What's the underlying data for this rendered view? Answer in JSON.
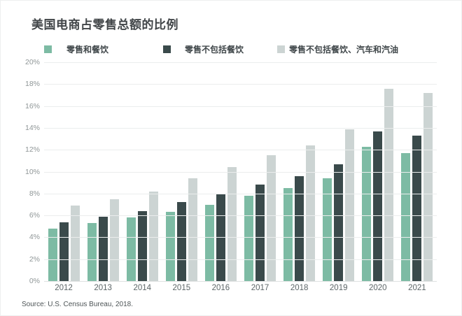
{
  "title": "美国电商占零售总额的比例",
  "source": "Source: U.S. Census Bureau, 2018.",
  "colors": {
    "series_green": "#7dbba4",
    "series_dark": "#3a4a4b",
    "series_light": "#ccd4d3",
    "gridline": "#ebeded",
    "title_text": "#414548",
    "axis_text": "#8f9697"
  },
  "legend": [
    {
      "label": "零售和餐饮",
      "color": "#7dbba4"
    },
    {
      "label": "零售不包括餐饮",
      "color": "#3a4a4b"
    },
    {
      "label": "零售不包括餐饮、汽车和汽油",
      "color": "#ccd4d3"
    }
  ],
  "chart_data": {
    "type": "bar",
    "title": "美国电商占零售总额的比例",
    "categories": [
      "2012",
      "2013",
      "2014",
      "2015",
      "2016",
      "2017",
      "2018",
      "2019",
      "2020",
      "2021"
    ],
    "series": [
      {
        "name": "零售和餐饮",
        "color": "#7dbba4",
        "values": [
          4.8,
          5.3,
          5.8,
          6.3,
          7.0,
          7.8,
          8.5,
          9.4,
          12.3,
          11.7
        ]
      },
      {
        "name": "零售不包括餐饮",
        "color": "#3a4a4b",
        "values": [
          5.4,
          5.9,
          6.4,
          7.2,
          8.0,
          8.8,
          9.6,
          10.7,
          13.7,
          13.3
        ]
      },
      {
        "name": "零售不包括餐饮、汽车和汽油",
        "color": "#ccd4d3",
        "values": [
          6.9,
          7.5,
          8.2,
          9.4,
          10.4,
          11.5,
          12.4,
          13.9,
          17.6,
          17.2
        ]
      }
    ],
    "xlabel": "",
    "ylabel": "",
    "ylim": [
      0,
      20
    ],
    "ytick_step": 2,
    "ytick_labels": [
      "20%",
      "18%",
      "16%",
      "14%",
      "12%",
      "10%",
      "8%",
      "6%",
      "4%",
      "2%",
      "0%"
    ],
    "grid": true,
    "legend_position": "top"
  }
}
